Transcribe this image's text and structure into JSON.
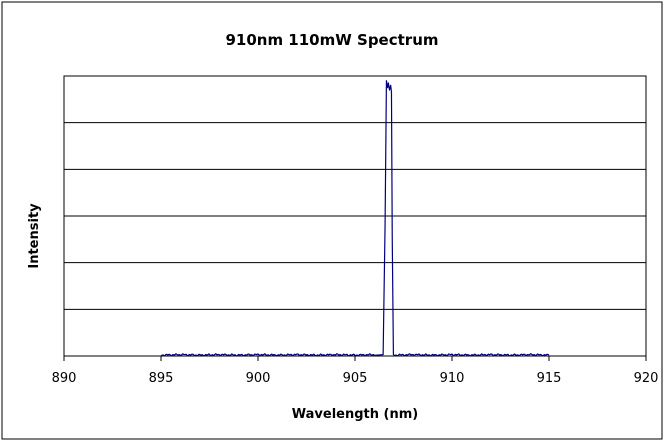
{
  "chart_data": {
    "type": "line",
    "title": "910nm 110mW Spectrum",
    "xlabel": "Wavelength (nm)",
    "ylabel": "Intensity",
    "xlim": [
      890,
      920
    ],
    "x_ticks": [
      890,
      895,
      900,
      905,
      910,
      915,
      920
    ],
    "x_tick_labels": [
      "890",
      "895",
      "900",
      "905",
      "910",
      "915",
      "920"
    ],
    "ylim": [
      0,
      6
    ],
    "y_gridlines": [
      1,
      2,
      3,
      4,
      5,
      6
    ],
    "y_tick_labels_shown": false,
    "grid": "horizontal",
    "legend": "none",
    "series": [
      {
        "color": "#000080",
        "x": [
          895.0,
          896.0,
          897.0,
          898.0,
          899.0,
          900.0,
          901.0,
          902.0,
          903.0,
          904.0,
          905.0,
          906.0,
          906.45,
          906.55,
          906.62,
          906.68,
          906.72,
          906.78,
          906.84,
          906.88,
          906.92,
          906.98,
          907.05,
          908.0,
          909.0,
          910.0,
          911.0,
          912.0,
          913.0,
          914.0,
          915.0
        ],
        "y": [
          0.02,
          0.03,
          0.02,
          0.03,
          0.02,
          0.03,
          0.02,
          0.03,
          0.02,
          0.03,
          0.02,
          0.03,
          0.03,
          2.8,
          5.9,
          5.75,
          5.85,
          5.7,
          5.8,
          5.65,
          2.5,
          0.03,
          0.02,
          0.03,
          0.02,
          0.03,
          0.02,
          0.03,
          0.02,
          0.03,
          0.02
        ]
      }
    ]
  }
}
